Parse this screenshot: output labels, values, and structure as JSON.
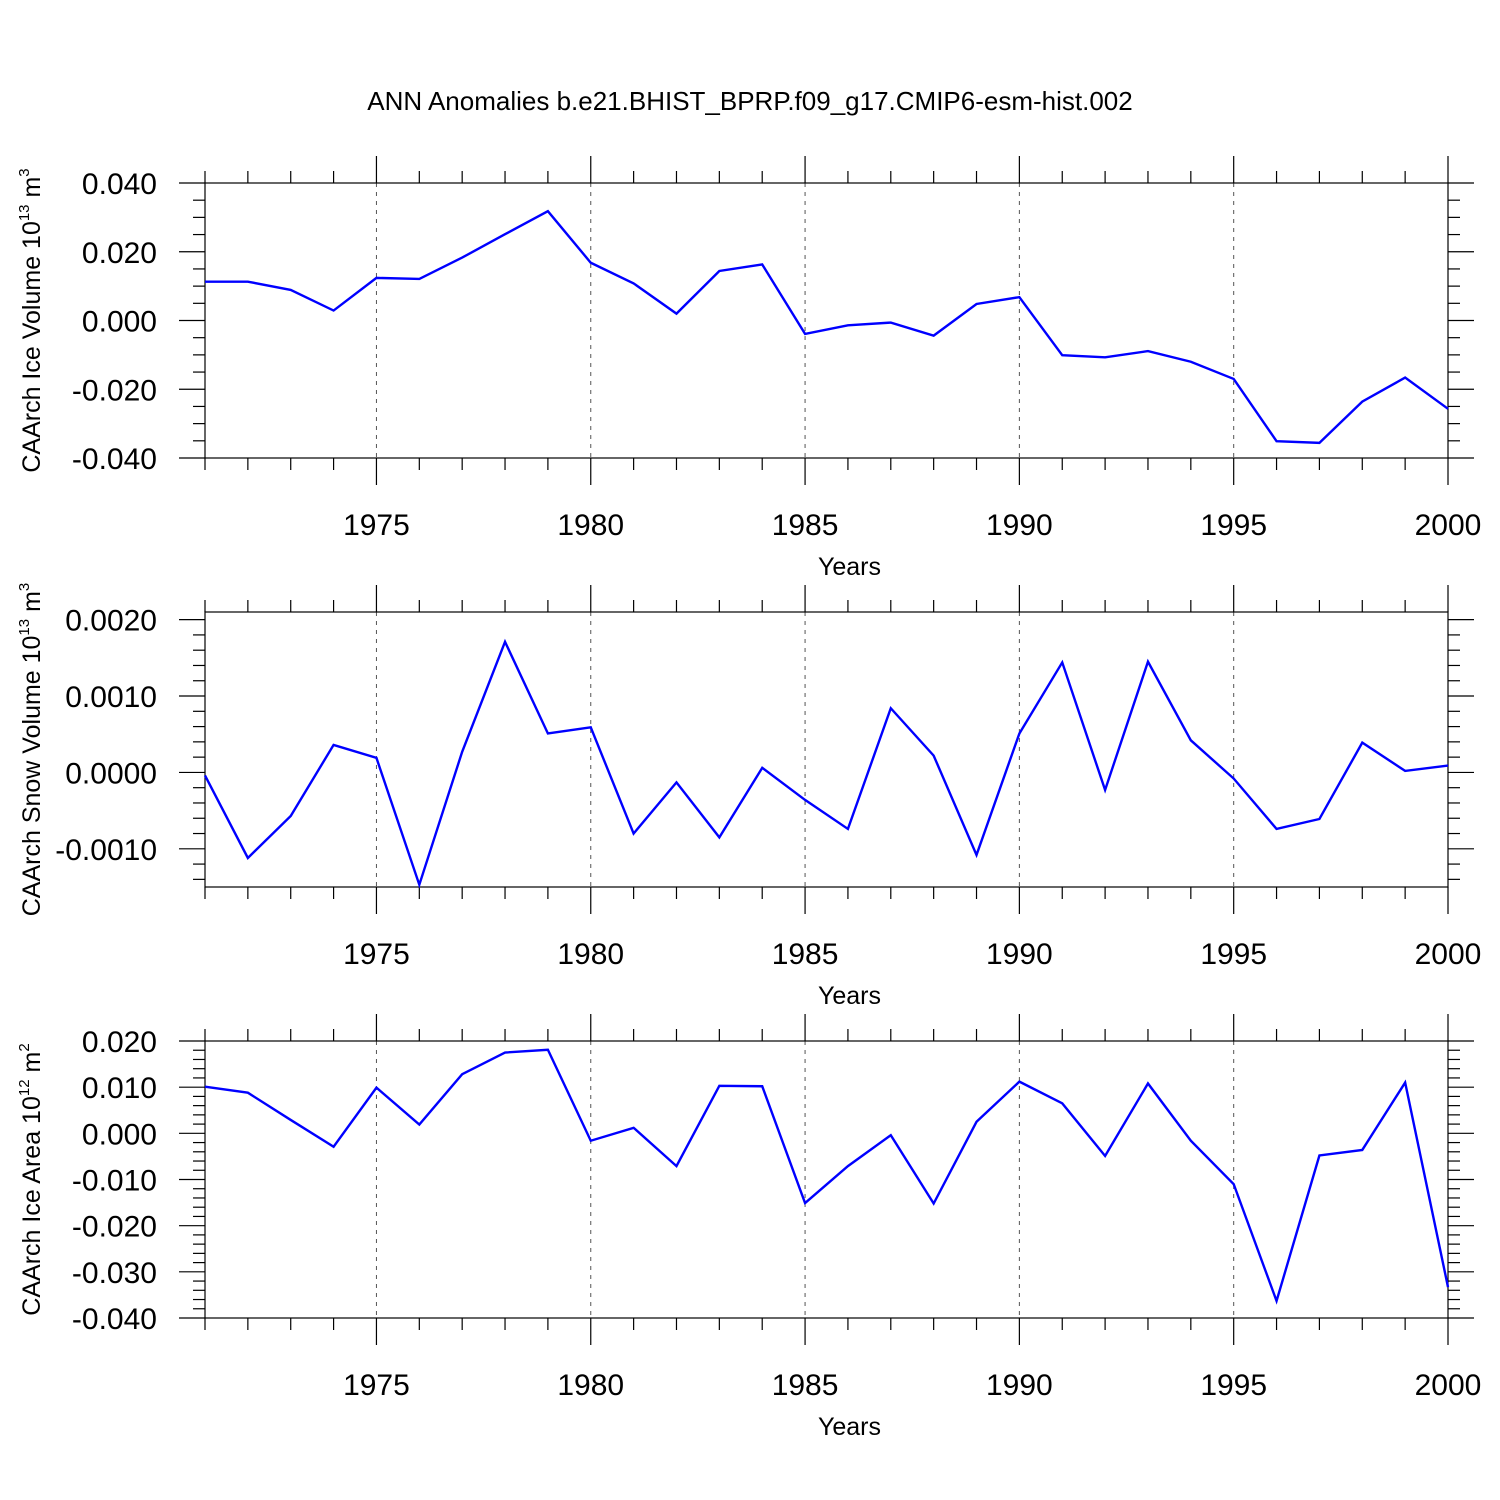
{
  "title": "ANN Anomalies b.e21.BHIST_BPRP.f09_g17.CMIP6-esm-hist.002",
  "colors": {
    "line": "#0000ff",
    "frame": "#000000"
  },
  "chart_data": [
    {
      "type": "line",
      "ylabel_main": "CAArch Ice Volume 10",
      "ylabel_exp": "13",
      "ylabel_unit": " m",
      "ylabel_unit_exp": "3",
      "xlabel": "Years",
      "xlim": [
        1971,
        2000
      ],
      "ylim": [
        -0.04,
        0.04
      ],
      "x_ticks": [
        1975,
        1980,
        1985,
        1990,
        1995,
        2000
      ],
      "x_tick_labels": [
        "1975",
        "1980",
        "1985",
        "1990",
        "1995",
        "2000"
      ],
      "y_ticks": [
        -0.04,
        -0.02,
        0.0,
        0.02,
        0.04
      ],
      "y_tick_labels": [
        "-0.040",
        "-0.020",
        "0.000",
        "0.020",
        "0.040"
      ],
      "y_minor_step": 0.005,
      "x": [
        1971,
        1972,
        1973,
        1974,
        1975,
        1976,
        1977,
        1978,
        1979,
        1980,
        1981,
        1982,
        1983,
        1984,
        1985,
        1986,
        1987,
        1988,
        1989,
        1990,
        1991,
        1992,
        1993,
        1994,
        1995,
        1996,
        1997,
        1998,
        1999,
        2000
      ],
      "values": [
        0.0113,
        0.0113,
        0.0089,
        0.0029,
        0.0124,
        0.0121,
        0.0183,
        0.0251,
        0.0318,
        0.0168,
        0.0108,
        0.002,
        0.0144,
        0.0163,
        -0.0039,
        -0.0014,
        -0.0006,
        -0.0044,
        0.0048,
        0.0068,
        -0.0101,
        -0.0107,
        -0.0089,
        -0.012,
        -0.017,
        -0.0351,
        -0.0356,
        -0.0236,
        -0.0166,
        -0.0257
      ]
    },
    {
      "type": "line",
      "ylabel_main": "CAArch Snow Volume 10",
      "ylabel_exp": "13",
      "ylabel_unit": " m",
      "ylabel_unit_exp": "3",
      "xlabel": "Years",
      "xlim": [
        1971,
        2000
      ],
      "ylim": [
        -0.0015,
        0.0021
      ],
      "x_ticks": [
        1975,
        1980,
        1985,
        1990,
        1995,
        2000
      ],
      "x_tick_labels": [
        "1975",
        "1980",
        "1985",
        "1990",
        "1995",
        "2000"
      ],
      "y_ticks": [
        -0.001,
        0.0,
        0.001,
        0.002
      ],
      "y_tick_labels": [
        "-0.0010",
        "0.0000",
        "0.0010",
        "0.0020"
      ],
      "y_minor_step": 0.0002,
      "x": [
        1971,
        1972,
        1973,
        1974,
        1975,
        1976,
        1977,
        1978,
        1979,
        1980,
        1981,
        1982,
        1983,
        1984,
        1985,
        1986,
        1987,
        1988,
        1989,
        1990,
        1991,
        1992,
        1993,
        1994,
        1995,
        1996,
        1997,
        1998,
        1999,
        2000
      ],
      "values": [
        -4e-05,
        -0.00112,
        -0.00057,
        0.00036,
        0.00019,
        -0.00147,
        0.00027,
        0.00171,
        0.00051,
        0.00059,
        -0.0008,
        -0.00013,
        -0.00085,
        6e-05,
        -0.00036,
        -0.00074,
        0.00084,
        0.00022,
        -0.00108,
        0.00051,
        0.00144,
        -0.00023,
        0.00145,
        0.00042,
        -8e-05,
        -0.00074,
        -0.00061,
        0.00039,
        2e-05,
        9e-05
      ]
    },
    {
      "type": "line",
      "ylabel_main": "CAArch Ice Area 10",
      "ylabel_exp": "12",
      "ylabel_unit": " m",
      "ylabel_unit_exp": "2",
      "xlabel": "Years",
      "xlim": [
        1971,
        2000
      ],
      "ylim": [
        -0.04,
        0.02
      ],
      "x_ticks": [
        1975,
        1980,
        1985,
        1990,
        1995,
        2000
      ],
      "x_tick_labels": [
        "1975",
        "1980",
        "1985",
        "1990",
        "1995",
        "2000"
      ],
      "y_ticks": [
        -0.04,
        -0.03,
        -0.02,
        -0.01,
        0.0,
        0.01,
        0.02
      ],
      "y_tick_labels": [
        "-0.040",
        "-0.030",
        "-0.020",
        "-0.010",
        "0.000",
        "0.010",
        "0.020"
      ],
      "y_minor_step": 0.002,
      "x": [
        1971,
        1972,
        1973,
        1974,
        1975,
        1976,
        1977,
        1978,
        1979,
        1980,
        1981,
        1982,
        1983,
        1984,
        1985,
        1986,
        1987,
        1988,
        1989,
        1990,
        1991,
        1992,
        1993,
        1994,
        1995,
        1996,
        1997,
        1998,
        1999,
        2000
      ],
      "values": [
        0.0101,
        0.0088,
        0.0029,
        -0.0029,
        0.0099,
        0.0019,
        0.0128,
        0.0175,
        0.0181,
        -0.0016,
        0.0012,
        -0.0071,
        0.0103,
        0.0102,
        -0.0151,
        -0.0071,
        -0.0004,
        -0.0152,
        0.0025,
        0.0112,
        0.0065,
        -0.0049,
        0.0108,
        -0.0016,
        -0.011,
        -0.0363,
        -0.0048,
        -0.0036,
        0.011,
        -0.0333
      ]
    }
  ]
}
